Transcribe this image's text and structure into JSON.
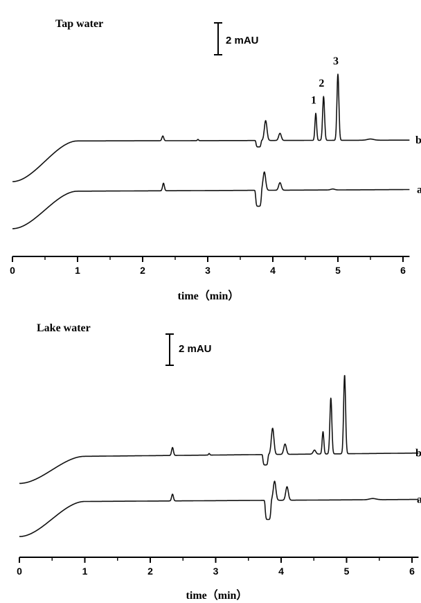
{
  "chart_data": [
    {
      "type": "line",
      "title": "Tap water",
      "xlabel": "time（min）",
      "xlim": [
        0,
        6.1
      ],
      "xticks": [
        "0",
        "1",
        "2",
        "3",
        "4",
        "5",
        "6"
      ],
      "scale_bar": "2 mAU",
      "peak_labels": [
        {
          "text": "1",
          "x": 4.66
        },
        {
          "text": "2",
          "x": 4.78
        },
        {
          "text": "3",
          "x": 5.0
        }
      ],
      "series": [
        {
          "name": "b",
          "baseline_start": 0.0,
          "plateau": 5.1,
          "ramp_end": 1.0,
          "drift": 0.1,
          "dip": {
            "x": 3.78,
            "depth": -0.8,
            "width": 0.04
          },
          "peaks": [
            {
              "x": 2.31,
              "h": 0.6,
              "w": 0.014
            },
            {
              "x": 2.85,
              "h": 0.15,
              "w": 0.01
            },
            {
              "x": 3.89,
              "h": 2.5,
              "w": 0.02
            },
            {
              "x": 4.11,
              "h": 0.9,
              "w": 0.02
            },
            {
              "x": 4.66,
              "h": 3.4,
              "w": 0.013
            },
            {
              "x": 4.78,
              "h": 5.5,
              "w": 0.015
            },
            {
              "x": 5.0,
              "h": 8.3,
              "w": 0.015
            },
            {
              "x": 5.5,
              "h": 0.15,
              "w": 0.05
            }
          ]
        },
        {
          "name": "a",
          "baseline_start": -2.6,
          "plateau": 2.1,
          "ramp_end": 1.0,
          "drift": 0.2,
          "dip": {
            "x": 3.78,
            "depth": -2.0,
            "width": 0.045
          },
          "peaks": [
            {
              "x": 2.32,
              "h": 0.95,
              "w": 0.014
            },
            {
              "x": 3.87,
              "h": 2.3,
              "w": 0.02
            },
            {
              "x": 4.11,
              "h": 0.95,
              "w": 0.02
            },
            {
              "x": 4.92,
              "h": 0.12,
              "w": 0.03
            }
          ]
        }
      ]
    },
    {
      "type": "line",
      "title": "Lake water",
      "xlabel": "time（min）",
      "xlim": [
        0,
        6.1
      ],
      "xticks": [
        "0",
        "1",
        "2",
        "3",
        "4",
        "5",
        "6"
      ],
      "scale_bar": "2 mAU",
      "series": [
        {
          "name": "b",
          "baseline_start": -0.3,
          "plateau": 3.1,
          "ramp_end": 1.0,
          "drift": 0.4,
          "dip": {
            "x": 3.76,
            "depth": -1.3,
            "width": 0.04
          },
          "peaks": [
            {
              "x": 2.34,
              "h": 1.0,
              "w": 0.014
            },
            {
              "x": 2.9,
              "h": 0.2,
              "w": 0.01
            },
            {
              "x": 3.87,
              "h": 3.3,
              "w": 0.02
            },
            {
              "x": 4.06,
              "h": 1.3,
              "w": 0.02
            },
            {
              "x": 4.51,
              "h": 0.5,
              "w": 0.02
            },
            {
              "x": 4.64,
              "h": 2.8,
              "w": 0.013
            },
            {
              "x": 4.76,
              "h": 7.0,
              "w": 0.015
            },
            {
              "x": 4.97,
              "h": 9.9,
              "w": 0.015
            }
          ]
        },
        {
          "name": "a",
          "baseline_start": -3.4,
          "plateau": 1.0,
          "ramp_end": 1.0,
          "drift": 0.25,
          "dip": {
            "x": 3.8,
            "depth": -2.4,
            "width": 0.045
          },
          "peaks": [
            {
              "x": 2.34,
              "h": 0.85,
              "w": 0.014
            },
            {
              "x": 3.9,
              "h": 2.4,
              "w": 0.02
            },
            {
              "x": 4.09,
              "h": 1.7,
              "w": 0.02
            },
            {
              "x": 5.4,
              "h": 0.15,
              "w": 0.05
            }
          ]
        }
      ]
    }
  ]
}
